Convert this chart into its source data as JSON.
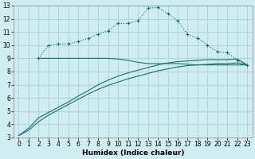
{
  "xlabel": "Humidex (Indice chaleur)",
  "xlim": [
    -0.5,
    23.5
  ],
  "ylim": [
    3,
    13
  ],
  "xticks": [
    0,
    1,
    2,
    3,
    4,
    5,
    6,
    7,
    8,
    9,
    10,
    11,
    12,
    13,
    14,
    15,
    16,
    17,
    18,
    19,
    20,
    21,
    22,
    23
  ],
  "yticks": [
    3,
    4,
    5,
    6,
    7,
    8,
    9,
    10,
    11,
    12,
    13
  ],
  "bg_color": "#d0eef0",
  "grid_color": "#b0d8da",
  "line_color": "#1a6e6a",
  "curve_dotted_x": [
    2,
    3,
    4,
    5,
    6,
    7,
    8,
    9,
    10,
    11,
    12,
    13,
    14,
    15,
    16,
    17,
    18,
    19,
    20,
    21,
    22,
    23
  ],
  "curve_dotted_y": [
    9.0,
    10.0,
    10.1,
    10.1,
    10.3,
    10.5,
    10.85,
    11.1,
    11.65,
    11.65,
    11.85,
    12.8,
    12.85,
    12.4,
    11.85,
    10.8,
    10.55,
    10.0,
    9.5,
    9.45,
    8.85,
    8.5
  ],
  "curve_flat_x": [
    2,
    3,
    4,
    5,
    6,
    7,
    8,
    9,
    10,
    11,
    12,
    13,
    14,
    15,
    16,
    17,
    18,
    19,
    20,
    21,
    22,
    23
  ],
  "curve_flat_y": [
    9.0,
    9.0,
    9.0,
    9.0,
    9.0,
    9.0,
    9.0,
    9.0,
    8.95,
    8.85,
    8.7,
    8.6,
    8.6,
    8.6,
    8.6,
    8.55,
    8.5,
    8.5,
    8.5,
    8.5,
    8.5,
    8.5
  ],
  "line_upper_x": [
    0,
    1,
    2,
    3,
    4,
    5,
    6,
    7,
    8,
    9,
    10,
    11,
    12,
    13,
    14,
    15,
    16,
    17,
    18,
    19,
    20,
    21,
    22,
    23
  ],
  "line_upper_y": [
    3.15,
    3.7,
    4.5,
    4.9,
    5.3,
    5.7,
    6.15,
    6.55,
    7.0,
    7.35,
    7.65,
    7.9,
    8.1,
    8.3,
    8.5,
    8.65,
    8.75,
    8.8,
    8.85,
    8.9,
    8.9,
    8.9,
    8.95,
    8.5
  ],
  "line_lower_x": [
    0,
    1,
    2,
    3,
    4,
    5,
    6,
    7,
    8,
    9,
    10,
    11,
    12,
    13,
    14,
    15,
    16,
    17,
    18,
    19,
    20,
    21,
    22,
    23
  ],
  "line_lower_y": [
    3.15,
    3.55,
    4.2,
    4.7,
    5.1,
    5.5,
    5.9,
    6.3,
    6.65,
    6.95,
    7.2,
    7.45,
    7.65,
    7.85,
    8.05,
    8.2,
    8.35,
    8.45,
    8.5,
    8.55,
    8.6,
    8.6,
    8.65,
    8.5
  ]
}
